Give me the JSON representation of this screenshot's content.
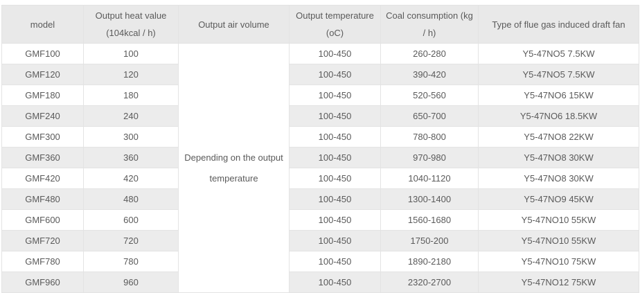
{
  "table": {
    "headers": [
      "model",
      "Output heat value\n(104kcal / h)",
      "Output air volume",
      "Output temperature\n(oC)",
      "Coal consumption (kg\n/ h)",
      "Type of flue gas induced draft fan"
    ],
    "air_volume_note": "Depending on the output\ntemperature",
    "rows": [
      {
        "model": "GMF100",
        "heat": "100",
        "temp": "100-450",
        "coal": "260-280",
        "fan": "Y5-47NO5 7.5KW"
      },
      {
        "model": "GMF120",
        "heat": "120",
        "temp": "100-450",
        "coal": "390-420",
        "fan": "Y5-47NO5 7.5KW"
      },
      {
        "model": "GMF180",
        "heat": "180",
        "temp": "100-450",
        "coal": "520-560",
        "fan": "Y5-47NO6 15KW"
      },
      {
        "model": "GMF240",
        "heat": "240",
        "temp": "100-450",
        "coal": "650-700",
        "fan": "Y5-47NO6 18.5KW"
      },
      {
        "model": "GMF300",
        "heat": "300",
        "temp": "100-450",
        "coal": "780-800",
        "fan": "Y5-47NO8 22KW"
      },
      {
        "model": "GMF360",
        "heat": "360",
        "temp": "100-450",
        "coal": "970-980",
        "fan": "Y5-47NO8 30KW"
      },
      {
        "model": "GMF420",
        "heat": "420",
        "temp": "100-450",
        "coal": "1040-1120",
        "fan": "Y5-47NO8 30KW"
      },
      {
        "model": "GMF480",
        "heat": "480",
        "temp": "100-450",
        "coal": "1300-1400",
        "fan": "Y5-47NO9 45KW"
      },
      {
        "model": "GMF600",
        "heat": "600",
        "temp": "100-450",
        "coal": "1560-1680",
        "fan": "Y5-47NO10 55KW"
      },
      {
        "model": "GMF720",
        "heat": "720",
        "temp": "100-450",
        "coal": "1750-200",
        "fan": "Y5-47NO10 55KW"
      },
      {
        "model": "GMF780",
        "heat": "780",
        "temp": "100-450",
        "coal": "1890-2180",
        "fan": "Y5-47NO10 75KW"
      },
      {
        "model": "GMF960",
        "heat": "960",
        "temp": "100-450",
        "coal": "2320-2700",
        "fan": "Y5-47NO12 75KW"
      }
    ]
  },
  "colors": {
    "text-color": "#5a5a5a",
    "header-bg": "#e9e9e9",
    "stripe-bg": "#ececec",
    "row-bg": "#ffffff",
    "border-color": "#e3e3e3",
    "outer-border": "#d8d8d8"
  }
}
